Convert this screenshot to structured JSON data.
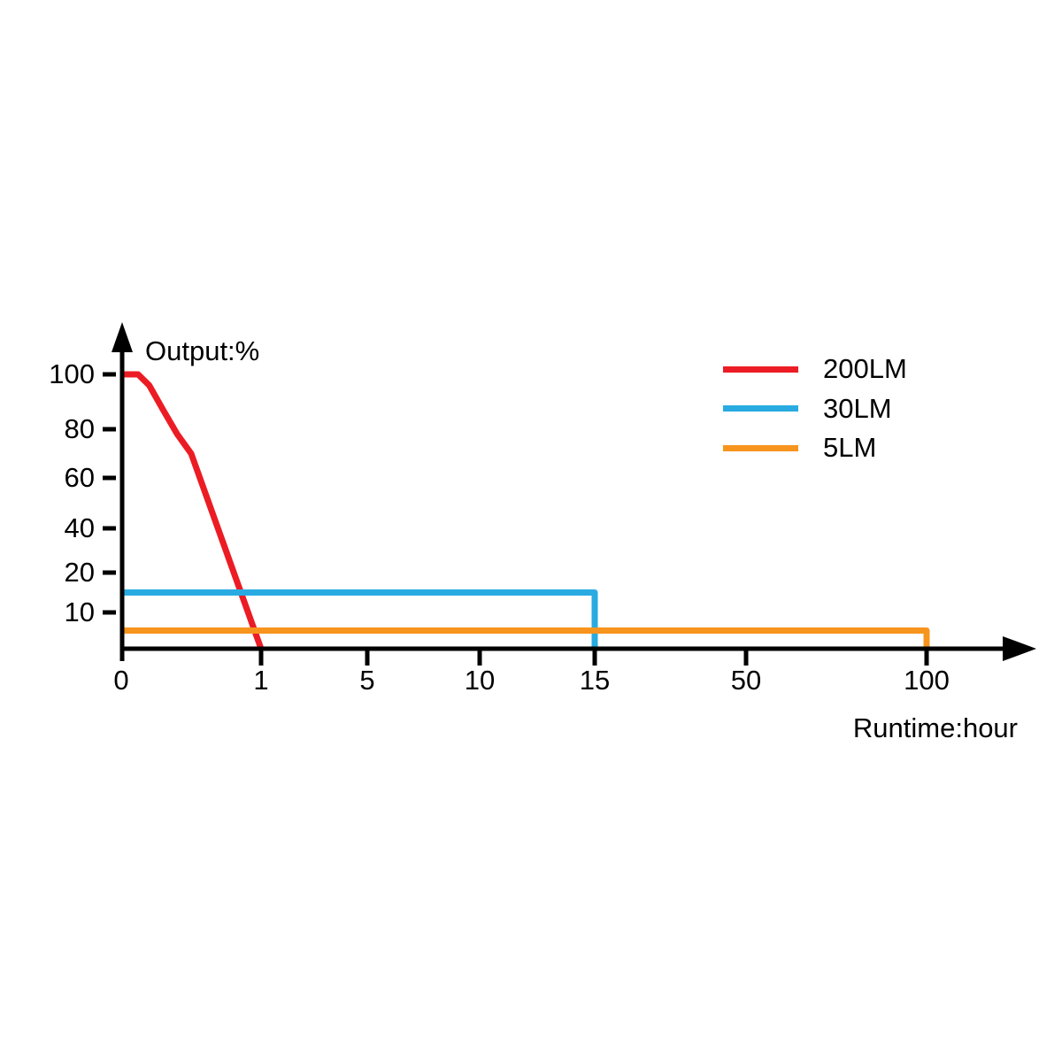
{
  "page": {
    "background": "#ffffff",
    "text_color": "#000000",
    "axis_color": "#000000"
  },
  "labels": {
    "y_axis_title": "Output:%",
    "x_axis_title": "Runtime:hour"
  },
  "legend": {
    "position": "top-right",
    "items": [
      {
        "label": "200LM",
        "color": "#EC1C24"
      },
      {
        "label": "30LM",
        "color": "#29ABE2"
      },
      {
        "label": "5LM",
        "color": "#F7941E"
      }
    ]
  },
  "chart_data": {
    "type": "line",
    "title": "",
    "xlabel": "Runtime:hour",
    "ylabel": "Output:%",
    "grid": false,
    "legend_position": "top-right",
    "x_axis": {
      "ticks": [
        0,
        1,
        5,
        10,
        15,
        50,
        100
      ],
      "tick_labels": [
        "0",
        "1",
        "5",
        "10",
        "15",
        "50",
        "100"
      ],
      "scale": "piecewise-nonlinear",
      "range": [
        0,
        100
      ]
    },
    "y_axis": {
      "ticks": [
        10,
        20,
        40,
        60,
        80,
        100
      ],
      "tick_labels": [
        "10",
        "20",
        "40",
        "60",
        "80",
        "100"
      ],
      "scale": "piecewise-nonlinear",
      "range": [
        0,
        100
      ]
    },
    "series": [
      {
        "name": "200LM",
        "color": "#EC1C24",
        "points": [
          [
            0,
            100
          ],
          [
            0.12,
            100
          ],
          [
            0.2,
            96
          ],
          [
            0.3,
            87
          ],
          [
            0.4,
            78
          ],
          [
            0.5,
            70
          ],
          [
            1,
            0
          ]
        ]
      },
      {
        "name": "30LM",
        "color": "#29ABE2",
        "points": [
          [
            0,
            15
          ],
          [
            15,
            15
          ],
          [
            15,
            0
          ]
        ]
      },
      {
        "name": "5LM",
        "color": "#F7941E",
        "points": [
          [
            0,
            5
          ],
          [
            100,
            5
          ],
          [
            100,
            0
          ]
        ]
      }
    ]
  }
}
